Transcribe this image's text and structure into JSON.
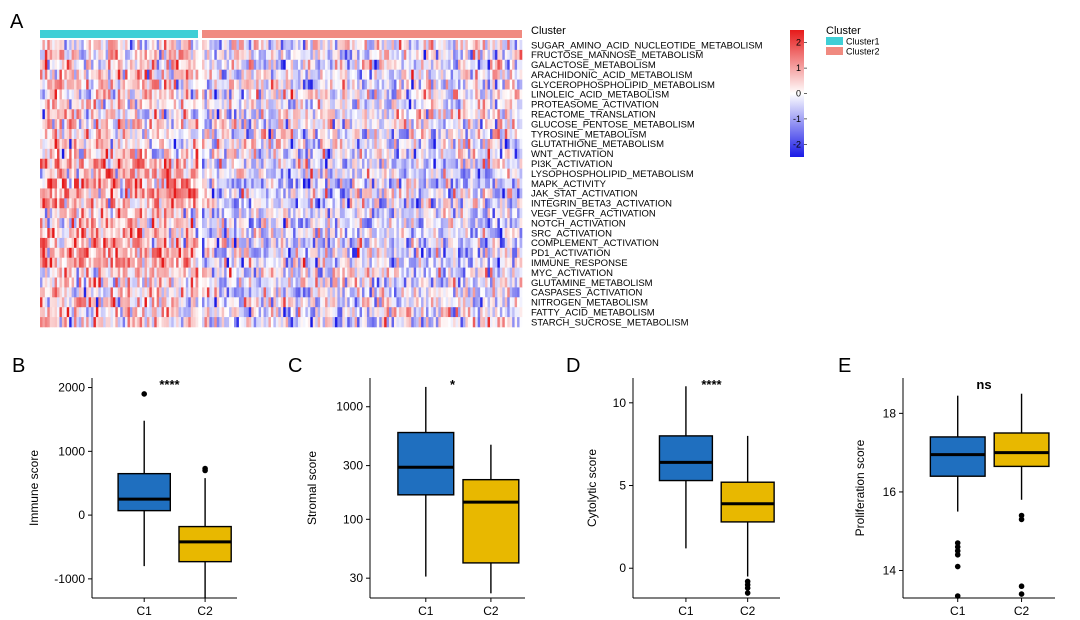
{
  "colors": {
    "cluster1": "#3fcfd6",
    "cluster2": "#f08a80",
    "heat_low": "#1a1ae6",
    "heat_mid": "#ffffff",
    "heat_high": "#e61a1a",
    "box_c1": "#1f6fbf",
    "box_c2": "#e8b800"
  },
  "heatmap": {
    "panel_label": "A",
    "annotation_name": "Cluster",
    "n_samples_cluster1": 65,
    "n_samples_cluster2": 130,
    "row_labels": [
      "SUGAR_AMINO_ACID_NUCLEOTIDE_METABOLISM",
      "FRUCTOSE_MANNOSE_METABOLISM",
      "GALACTOSE_METABOLISM",
      "ARACHIDONIC_ACID_METABOLISM",
      "GLYCEROPHOSPHOLIPID_METABOLISM",
      "LINOLEIC_ACID_METABOLISM",
      "PROTEASOME_ACTIVATION",
      "REACTOME_TRANSLATION",
      "GLUCOSE_PENTOSE_METABOLISM",
      "TYROSINE_METABOLISM",
      "GLUTATHIONE_METABOLISM",
      "WNT_ACTIVATION",
      "PI3K_ACTIVATION",
      "LYSOPHOSPHOLIPID_METABOLISM",
      "MAPK_ACTIVITY",
      "JAK_STAT_ACTIVATION",
      "INTEGRIN_BETA3_ACTIVATION",
      "VEGF_VEGFR_ACTIVATION",
      "NOTCH_ACTIVATION",
      "SRC_ACTIVATION",
      "COMPLEMENT_ACTIVATION",
      "PD1_ACTIVATION",
      "IMMUNE_RESPONSE",
      "MYC_ACTIVATION",
      "GLUTAMINE_METABOLISM",
      "CASPASES_ACTIVATION",
      "NITROGEN_METABOLISM",
      "FATTY_ACID_METABOLISM",
      "STARCH_SUCROSE_METABOLISM"
    ],
    "row_bias_cluster1": [
      0.2,
      0.3,
      0.2,
      0.3,
      0.3,
      0.3,
      0.2,
      0.2,
      0.3,
      0.2,
      0.3,
      0.4,
      0.8,
      0.8,
      0.9,
      0.8,
      0.6,
      0.5,
      0.6,
      0.7,
      0.8,
      0.9,
      0.9,
      0.4,
      0.3,
      0.4,
      0.3,
      0.3,
      0.2
    ],
    "row_bias_cluster2": [
      -0.1,
      -0.1,
      -0.1,
      -0.1,
      -0.1,
      -0.1,
      -0.1,
      -0.1,
      -0.1,
      -0.1,
      -0.1,
      -0.2,
      -0.4,
      -0.4,
      -0.45,
      -0.4,
      -0.3,
      -0.25,
      -0.3,
      -0.35,
      -0.4,
      -0.45,
      -0.45,
      -0.2,
      -0.15,
      -0.2,
      -0.15,
      -0.15,
      -0.1
    ],
    "color_legend": {
      "ticks": [
        2,
        1,
        0,
        -1,
        -2
      ],
      "range": [
        -2.5,
        2.5
      ]
    },
    "cluster_legend": {
      "title": "Cluster",
      "items": [
        "Cluster1",
        "Cluster2"
      ]
    }
  },
  "chart_data": [
    {
      "panel": "B",
      "type": "boxplot",
      "ylabel": "Immune score",
      "significance": "****",
      "yscale": "linear",
      "ylim": [
        -1300,
        2150
      ],
      "yticks": [
        -1000,
        0,
        1000,
        2000
      ],
      "categories": [
        "C1",
        "C2"
      ],
      "boxes": [
        {
          "name": "C1",
          "whisker_low": -800,
          "q1": 70,
          "median": 250,
          "q3": 650,
          "whisker_high": 1480,
          "outliers": [
            1900
          ]
        },
        {
          "name": "C2",
          "whisker_low": -1300,
          "q1": -730,
          "median": -420,
          "q3": -180,
          "whisker_high": 580,
          "outliers": [
            700,
            730
          ]
        }
      ]
    },
    {
      "panel": "C",
      "type": "boxplot",
      "ylabel": "Stromal score",
      "significance": "*",
      "yscale": "log",
      "ylim": [
        20,
        1800
      ],
      "yticks": [
        30,
        100,
        300,
        1000
      ],
      "categories": [
        "C1",
        "C2"
      ],
      "boxes": [
        {
          "name": "C1",
          "whisker_low": 31,
          "q1": 165,
          "median": 290,
          "q3": 590,
          "whisker_high": 1500,
          "outliers": []
        },
        {
          "name": "C2",
          "whisker_low": 22,
          "q1": 41,
          "median": 142,
          "q3": 225,
          "whisker_high": 460,
          "outliers": []
        }
      ]
    },
    {
      "panel": "D",
      "type": "boxplot",
      "ylabel": "Cytolytic score",
      "significance": "****",
      "yscale": "linear",
      "ylim": [
        -1.8,
        11.5
      ],
      "yticks": [
        0,
        5,
        10
      ],
      "categories": [
        "C1",
        "C2"
      ],
      "boxes": [
        {
          "name": "C1",
          "whisker_low": 1.2,
          "q1": 5.3,
          "median": 6.4,
          "q3": 8.0,
          "whisker_high": 11.0,
          "outliers": []
        },
        {
          "name": "C2",
          "whisker_low": -0.5,
          "q1": 2.8,
          "median": 3.9,
          "q3": 5.2,
          "whisker_high": 8.0,
          "outliers": [
            -0.8,
            -1.0,
            -1.2,
            -1.5
          ]
        }
      ]
    },
    {
      "panel": "E",
      "type": "boxplot",
      "ylabel": "Proliferation score",
      "significance": "ns",
      "yscale": "linear",
      "ylim": [
        13.3,
        18.9
      ],
      "yticks": [
        14,
        16,
        18
      ],
      "categories": [
        "C1",
        "C2"
      ],
      "boxes": [
        {
          "name": "C1",
          "whisker_low": 15.5,
          "q1": 16.4,
          "median": 16.95,
          "q3": 17.4,
          "whisker_high": 18.45,
          "outliers": [
            14.1,
            14.4,
            14.5,
            14.6,
            14.7,
            13.35
          ]
        },
        {
          "name": "C2",
          "whisker_low": 15.8,
          "q1": 16.65,
          "median": 17.0,
          "q3": 17.5,
          "whisker_high": 18.5,
          "outliers": [
            15.3,
            15.4,
            13.6,
            13.4
          ]
        }
      ]
    }
  ]
}
